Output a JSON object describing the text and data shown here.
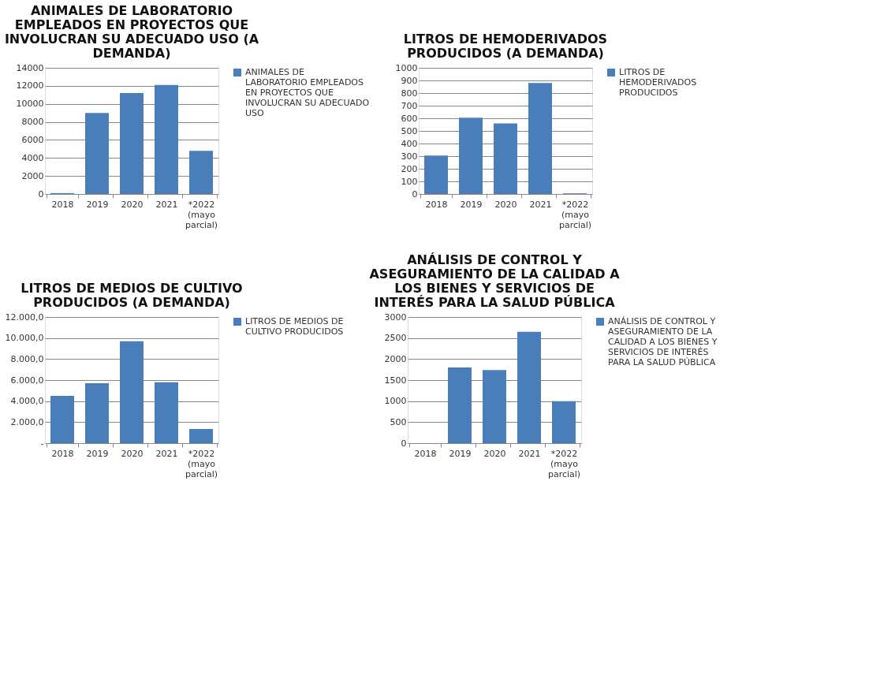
{
  "chart_data": [
    {
      "type": "bar",
      "title": "ANIMALES DE LABORATORIO EMPLEADOS EN PROYECTOS QUE INVOLUCRAN SU ADECUADO USO (A DEMANDA)",
      "categories": [
        "2018",
        "2019",
        "2020",
        "2021",
        "*2022 (mayo parcial)"
      ],
      "series": [
        {
          "name": "ANIMALES DE LABORATORIO EMPLEADOS EN PROYECTOS QUE INVOLUCRAN SU ADECUADO USO",
          "color": "#4a7ebb",
          "values": [
            100,
            9000,
            11200,
            12100,
            4800
          ]
        }
      ],
      "ylim": [
        0,
        14000
      ],
      "yticks": [
        0,
        2000,
        4000,
        6000,
        8000,
        10000,
        12000,
        14000
      ],
      "grid": "y",
      "legend": "right"
    },
    {
      "type": "bar",
      "title": "LITROS DE HEMODERIVADOS PRODUCIDOS (A DEMANDA)",
      "categories": [
        "2018",
        "2019",
        "2020",
        "2021",
        "*2022 (mayo parcial)"
      ],
      "series": [
        {
          "name": "LITROS DE HEMODERIVADOS PRODUCIDOS",
          "color": "#4a7ebb",
          "values": [
            305,
            605,
            560,
            880,
            5
          ]
        }
      ],
      "ylim": [
        0,
        1000
      ],
      "yticks": [
        0,
        100,
        200,
        300,
        400,
        500,
        600,
        700,
        800,
        900,
        1000
      ],
      "grid": "y",
      "legend": "right"
    },
    {
      "type": "bar",
      "title": "LITROS DE MEDIOS DE CULTIVO PRODUCIDOS (A DEMANDA)",
      "categories": [
        "2018",
        "2019",
        "2020",
        "2021",
        "*2022 (mayo parcial)"
      ],
      "series": [
        {
          "name": "LITROS DE MEDIOS DE CULTIVO PRODUCIDOS",
          "color": "#4a7ebb",
          "values": [
            4500,
            5700,
            9700,
            5800,
            1350
          ]
        }
      ],
      "ylim": [
        0,
        12000
      ],
      "yticks": [
        {
          "value": 0,
          "label": "-"
        },
        {
          "value": 2000,
          "label": "2.000,0"
        },
        {
          "value": 4000,
          "label": "4.000,0"
        },
        {
          "value": 6000,
          "label": "6.000,0"
        },
        {
          "value": 8000,
          "label": "8.000,0"
        },
        {
          "value": 10000,
          "label": "10.000,0"
        },
        {
          "value": 12000,
          "label": "12.000,0"
        }
      ],
      "grid": "y",
      "legend": "right"
    },
    {
      "type": "bar",
      "title": "ANÁLISIS DE CONTROL Y ASEGURAMIENTO DE LA CALIDAD A LOS BIENES Y SERVICIOS DE INTERÉS PARA LA SALUD PÚBLICA",
      "categories": [
        "2018",
        "2019",
        "2020",
        "2021",
        "*2022 (mayo parcial)"
      ],
      "series": [
        {
          "name": "ANÁLISIS DE CONTROL Y ASEGURAMIENTO DE LA CALIDAD A LOS BIENES Y SERVICIOS DE INTERÉS PARA LA SALUD PÚBLICA",
          "color": "#4a7ebb",
          "values": [
            0,
            1800,
            1740,
            2650,
            1000
          ]
        }
      ],
      "ylim": [
        0,
        3000
      ],
      "yticks": [
        0,
        500,
        1000,
        1500,
        2000,
        2500,
        3000
      ],
      "grid": "y",
      "legend": "right"
    }
  ]
}
